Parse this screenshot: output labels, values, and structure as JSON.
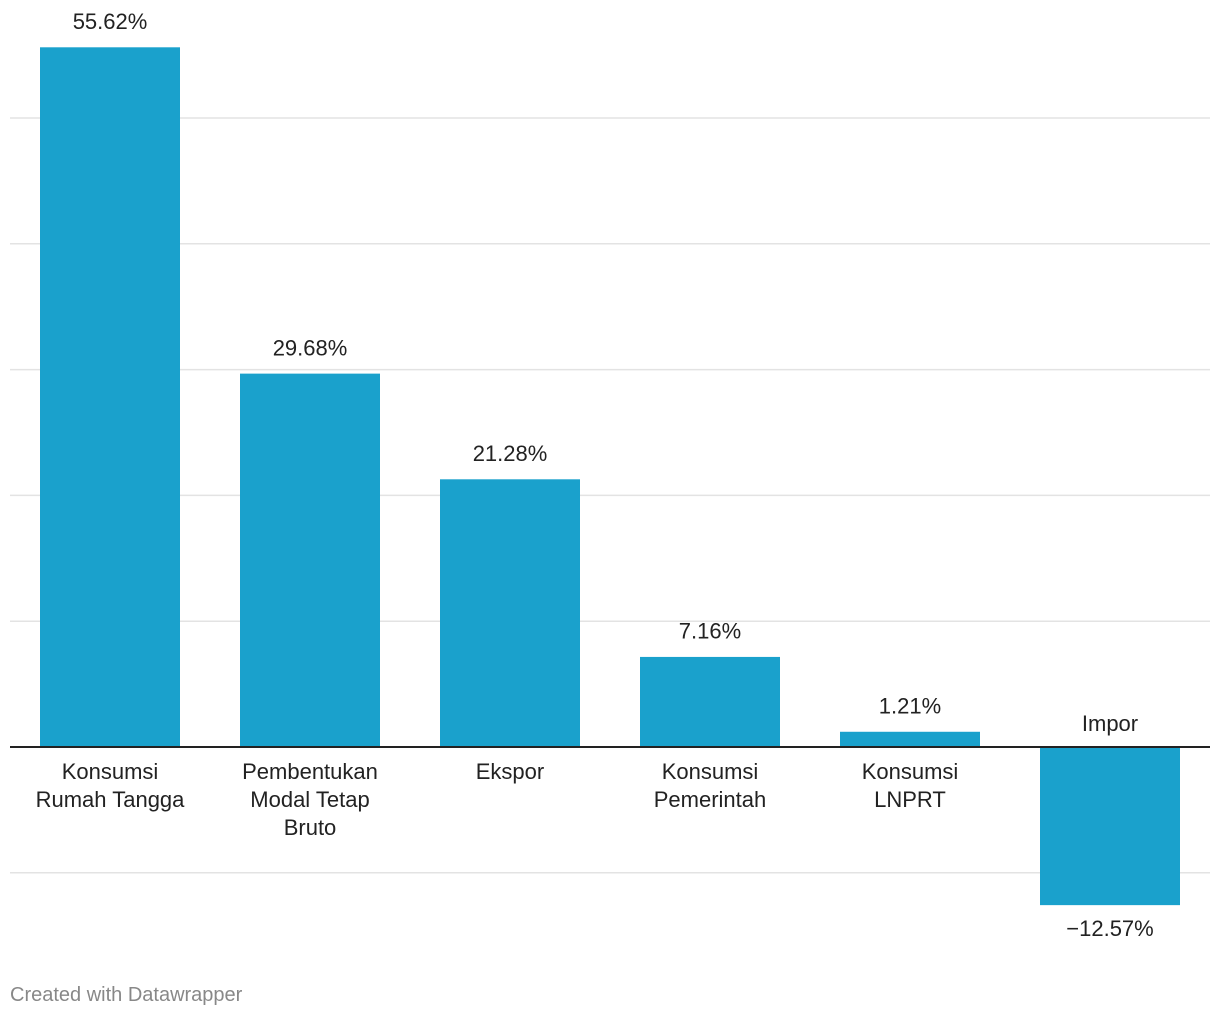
{
  "chart_data": {
    "type": "bar",
    "categories": [
      "Konsumsi\nRumah Tangga",
      "Pembentukan\nModal Tetap\nBruto",
      "Ekspor",
      "Konsumsi\nPemerintah",
      "Konsumsi\nLNPRT",
      "Impor"
    ],
    "values": [
      55.62,
      29.68,
      21.28,
      7.16,
      1.21,
      -12.57
    ],
    "value_labels": [
      "55.62%",
      "29.68%",
      "21.28%",
      "7.16%",
      "1.21%",
      "−12.57%"
    ],
    "color": "#1aa1cc",
    "ylim": [
      -15,
      56
    ],
    "yticks": [
      -10,
      0,
      10,
      20,
      30,
      40,
      50
    ],
    "grid": true
  },
  "footer": "Created with Datawrapper"
}
